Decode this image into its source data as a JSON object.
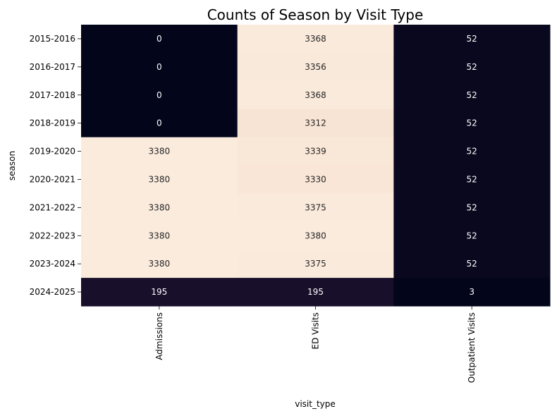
{
  "chart_data": {
    "type": "heatmap",
    "title": "Counts of Season by Visit Type",
    "xlabel": "visit_type",
    "ylabel": "season",
    "x_categories": [
      "Admissions",
      "ED Visits",
      "Outpatient Visits"
    ],
    "y_categories": [
      "2015-2016",
      "2016-2017",
      "2017-2018",
      "2018-2019",
      "2019-2020",
      "2020-2021",
      "2021-2022",
      "2022-2023",
      "2023-2024",
      "2024-2025"
    ],
    "values": [
      [
        0,
        3368,
        52
      ],
      [
        0,
        3356,
        52
      ],
      [
        0,
        3368,
        52
      ],
      [
        0,
        3312,
        52
      ],
      [
        3380,
        3339,
        52
      ],
      [
        3380,
        3330,
        52
      ],
      [
        3380,
        3375,
        52
      ],
      [
        3380,
        3380,
        52
      ],
      [
        3380,
        3375,
        52
      ],
      [
        195,
        195,
        3
      ]
    ],
    "value_range": [
      0,
      3380
    ],
    "colormap": "rocket",
    "colorbar": false,
    "annotations": true
  }
}
